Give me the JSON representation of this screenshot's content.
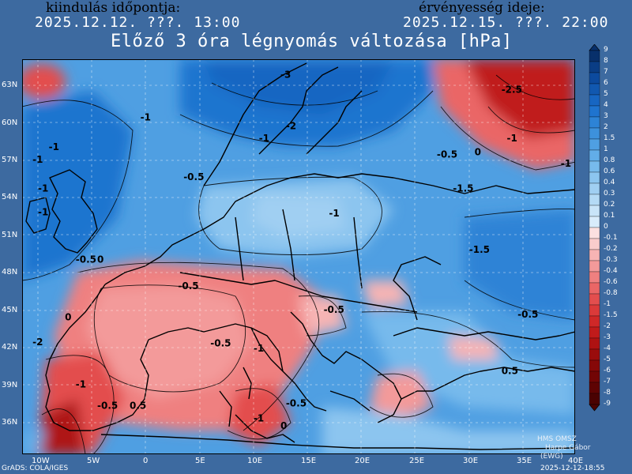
{
  "header": {
    "init_label": "kiindulás időpontja:",
    "init_value": "2025.12.12. ???. 13:00",
    "valid_label": "érvényesség ideje:",
    "valid_value": "2025.12.15. ???. 22:00",
    "title": "Előző 3 óra légnyomás változása [hPa]"
  },
  "axes": {
    "lat_labels": [
      "63N",
      "60N",
      "57N",
      "54N",
      "51N",
      "48N",
      "45N",
      "42N",
      "39N",
      "36N"
    ],
    "lon_labels": [
      "10W",
      "5W",
      "0",
      "5E",
      "10E",
      "15E",
      "20E",
      "25E",
      "30E",
      "35E",
      "40E"
    ]
  },
  "colorbar": {
    "labels": [
      "9",
      "8",
      "7",
      "6",
      "5",
      "4",
      "3",
      "2",
      "1.5",
      "1",
      "0.8",
      "0.6",
      "0.4",
      "0.3",
      "0.2",
      "0.1",
      "0",
      "-0.1",
      "-0.2",
      "-0.3",
      "-0.4",
      "-0.6",
      "-0.8",
      "-1",
      "-1.5",
      "-2",
      "-3",
      "-4",
      "-5",
      "-6",
      "-7",
      "-8",
      "-9"
    ],
    "positive_colors": [
      "#08306b",
      "#0a3d85",
      "#0c4a9e",
      "#1158b0",
      "#1766c2",
      "#1f74cf",
      "#2d83d6",
      "#3d91dc",
      "#4f9fe2",
      "#62ade8",
      "#77baec",
      "#8cc5ef",
      "#a0cff2",
      "#b4daf5",
      "#c8e4f8",
      "#d8ecfb"
    ],
    "negative_colors": [
      "#fbe0e0",
      "#f9cccc",
      "#f6b4b4",
      "#f39a9a",
      "#ef8080",
      "#ea6666",
      "#e34e4e",
      "#db3a3a",
      "#cf2828",
      "#c01b1b",
      "#ae1212",
      "#9a0c0c",
      "#860808",
      "#720505",
      "#5e0303",
      "#4a0202"
    ]
  },
  "contour_labels": [
    {
      "text": "-3",
      "lon": 12.5,
      "lat": 63.6
    },
    {
      "text": "-2.5",
      "lon": 33,
      "lat": 62.4
    },
    {
      "text": "-1",
      "lon": 33.5,
      "lat": 58.5
    },
    {
      "text": "-2",
      "lon": 13,
      "lat": 59.5
    },
    {
      "text": "-1",
      "lon": 10.5,
      "lat": 58.5
    },
    {
      "text": "-1",
      "lon": -9,
      "lat": 57.8
    },
    {
      "text": "-1",
      "lon": -10.5,
      "lat": 56.8
    },
    {
      "text": "-1",
      "lon": -10,
      "lat": 54.5
    },
    {
      "text": "-1",
      "lon": -0.5,
      "lat": 60.2
    },
    {
      "text": "0",
      "lon": 30.5,
      "lat": 57.4
    },
    {
      "text": "-0.5",
      "lon": 27,
      "lat": 57.2
    },
    {
      "text": "-1",
      "lon": 38.5,
      "lat": 56.5
    },
    {
      "text": "-0.5",
      "lon": 3.5,
      "lat": 55.4
    },
    {
      "text": "-1",
      "lon": -10,
      "lat": 52.6
    },
    {
      "text": "-1.5",
      "lon": 28.5,
      "lat": 54.5
    },
    {
      "text": "-1",
      "lon": 17,
      "lat": 52.5
    },
    {
      "text": "-1.5",
      "lon": 30,
      "lat": 49.6
    },
    {
      "text": "-0.5",
      "lon": -6.5,
      "lat": 48.8
    },
    {
      "text": "0",
      "lon": -4.5,
      "lat": 48.8
    },
    {
      "text": "-0.5",
      "lon": 3,
      "lat": 46.7
    },
    {
      "text": "-0.5",
      "lon": 34.5,
      "lat": 44.4
    },
    {
      "text": "-0.5",
      "lon": 16.5,
      "lat": 44.8
    },
    {
      "text": "0",
      "lon": -7.5,
      "lat": 44.2
    },
    {
      "text": "-0.5",
      "lon": 6,
      "lat": 42.1
    },
    {
      "text": "-1",
      "lon": 10,
      "lat": 41.7
    },
    {
      "text": "-2",
      "lon": -10.5,
      "lat": 42.2
    },
    {
      "text": "0.5",
      "lon": 33,
      "lat": 39.9
    },
    {
      "text": "-1",
      "lon": -6.5,
      "lat": 38.8
    },
    {
      "text": "-0.5",
      "lon": -4.5,
      "lat": 37.1
    },
    {
      "text": "0.5",
      "lon": -1.5,
      "lat": 37.1
    },
    {
      "text": "-0.5",
      "lon": 13,
      "lat": 37.3
    },
    {
      "text": "-1",
      "lon": 10,
      "lat": 36.1
    },
    {
      "text": "0",
      "lon": 12.5,
      "lat": 35.5
    }
  ],
  "credit": [
    "HMS OMSZ",
    "Harpe Gábor",
    "(EWG)"
  ],
  "footer": {
    "left": "GrADS: COLA/IGES",
    "right": "2025-12-12-18:55"
  }
}
